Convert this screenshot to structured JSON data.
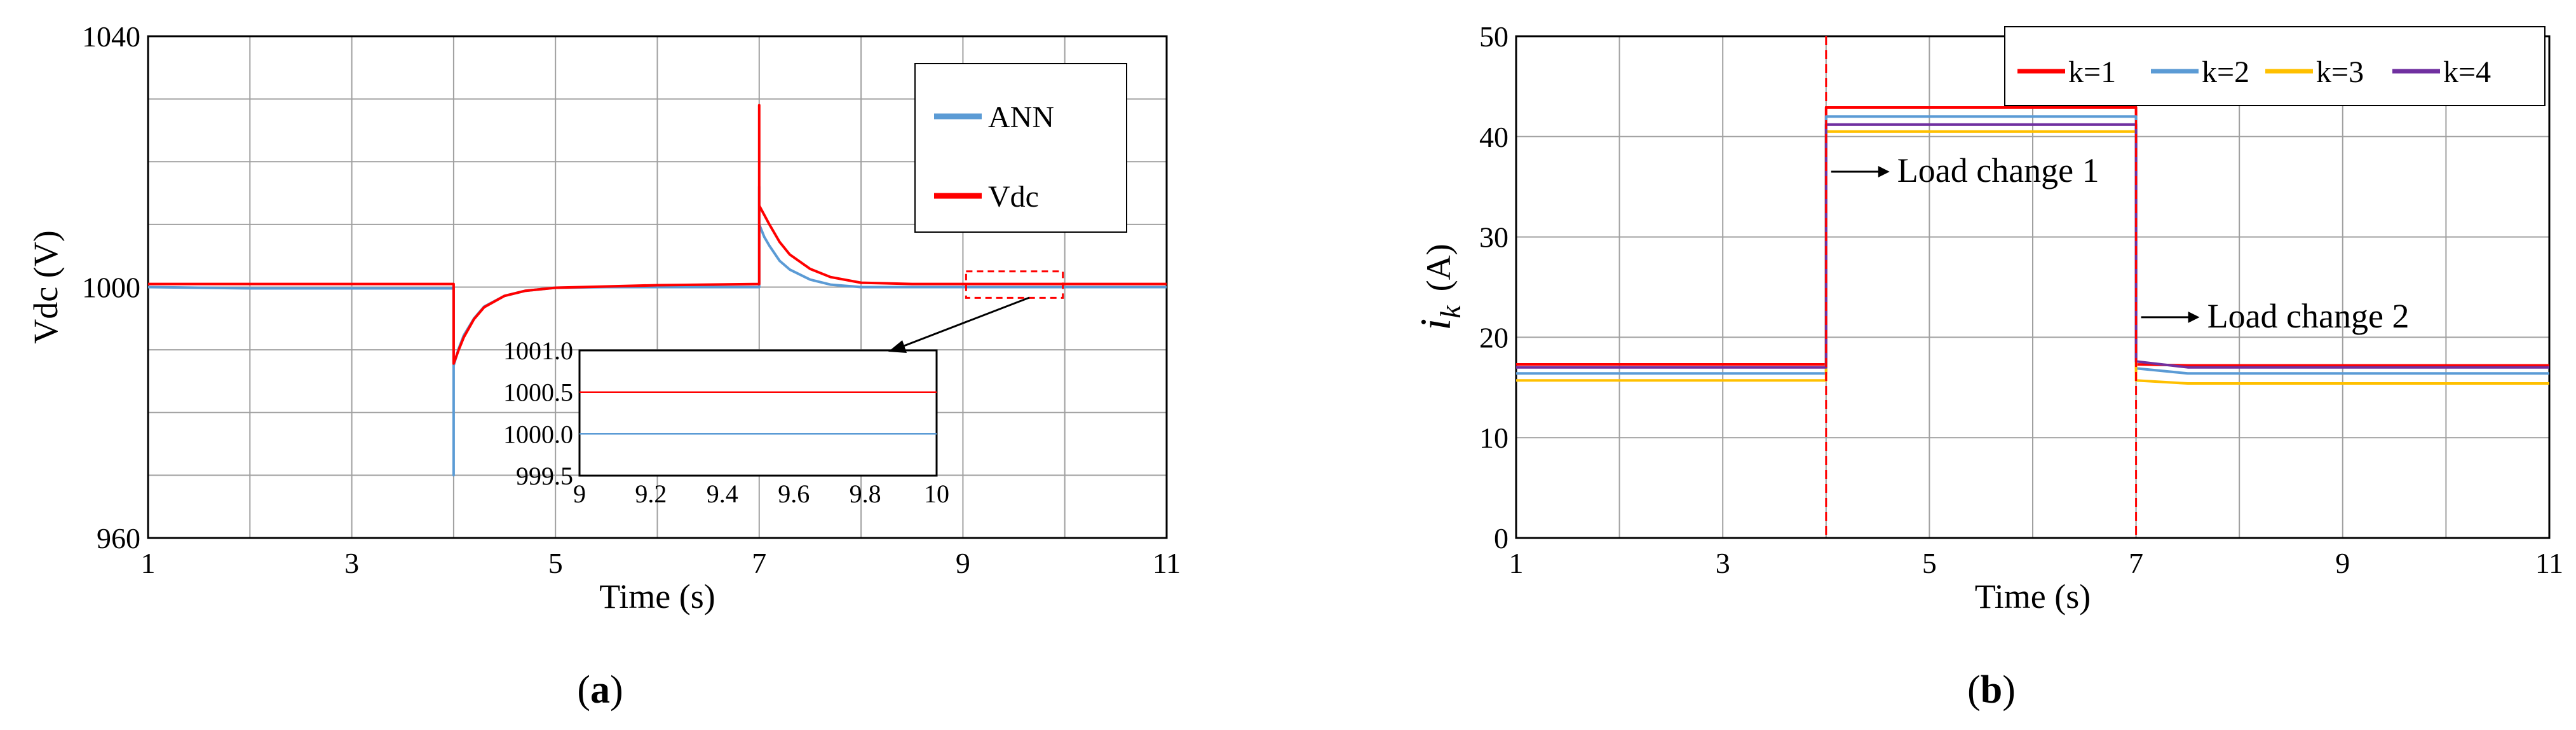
{
  "chart_data": [
    {
      "type": "line",
      "panel": "(a)",
      "panel_letter": "a",
      "xlabel": "Time (s)",
      "ylabel": "Vdc (V)",
      "xlim": [
        1,
        11
      ],
      "ylim": [
        960,
        1040
      ],
      "xticks": [
        "1",
        "3",
        "5",
        "7",
        "9",
        "11"
      ],
      "yticks": [
        "960",
        "1000",
        "1040"
      ],
      "grid": true,
      "legend": {
        "placement": "top-right",
        "entries": [
          "ANN",
          "Vdc"
        ]
      },
      "series": [
        {
          "name": "ANN",
          "color": "#5b9bd5",
          "x": [
            1,
            2,
            3,
            4,
            4.0,
            4.0,
            4.05,
            4.1,
            4.2,
            4.3,
            4.5,
            4.7,
            5.0,
            5.5,
            6,
            7,
            7.0,
            7.0,
            7.05,
            7.1,
            7.2,
            7.3,
            7.5,
            7.7,
            8.0,
            8.5,
            9,
            10,
            11
          ],
          "y": [
            1000,
            999.8,
            999.8,
            999.8,
            970,
            987.5,
            990.2,
            992.3,
            995.0,
            996.9,
            998.6,
            999.4,
            999.9,
            1000,
            1000,
            1000,
            1016,
            1010,
            1008,
            1006.6,
            1004.2,
            1002.8,
            1001.2,
            1000.4,
            1000,
            1000,
            1000,
            1000,
            1000
          ]
        },
        {
          "name": "Vdc",
          "color": "#ff0000",
          "x": [
            1,
            2,
            3,
            4,
            4.0,
            4.05,
            4.1,
            4.2,
            4.3,
            4.5,
            4.7,
            5.0,
            5.5,
            6,
            7,
            7.0,
            7.0,
            7.05,
            7.1,
            7.2,
            7.3,
            7.5,
            7.7,
            8.0,
            8.5,
            9,
            10,
            11
          ],
          "y": [
            1000.5,
            1000.5,
            1000.5,
            1000.5,
            987.8,
            990.0,
            992.0,
            994.9,
            996.8,
            998.6,
            999.4,
            999.9,
            1000.1,
            1000.3,
            1000.5,
            1029,
            1013,
            1011.5,
            1010,
            1007.2,
            1005.2,
            1002.9,
            1001.6,
            1000.7,
            1000.5,
            1000.5,
            1000.5,
            1000.5
          ]
        }
      ],
      "inset": {
        "xlim": [
          9,
          10
        ],
        "ylim": [
          999.5,
          1001.0
        ],
        "xticks": [
          "9",
          "9.2",
          "9.4",
          "9.6",
          "9.8",
          "10"
        ],
        "yticks": [
          "999.5",
          "1000.0",
          "1000.5",
          "1001.0"
        ],
        "zoom_region": {
          "x": [
            9,
            10
          ],
          "y": [
            999.3,
            1001.5
          ]
        },
        "series": [
          {
            "name": "Vdc",
            "color": "#ff0000",
            "x": [
              9,
              10
            ],
            "y": [
              1000.5,
              1000.5
            ]
          },
          {
            "name": "ANN",
            "color": "#5b9bd5",
            "x": [
              9,
              10
            ],
            "y": [
              1000.0,
              1000.0
            ]
          }
        ]
      }
    },
    {
      "type": "line",
      "panel": "(b)",
      "panel_letter": "b",
      "xlabel": "Time (s)",
      "ylabel_main": "i",
      "ylabel_sub": "k",
      "ylabel_unit": "(A)",
      "xlim": [
        1,
        11
      ],
      "ylim": [
        0,
        50
      ],
      "xticks": [
        "1",
        "3",
        "5",
        "7",
        "9",
        "11"
      ],
      "yticks": [
        "0",
        "10",
        "20",
        "30",
        "40",
        "50"
      ],
      "grid": true,
      "legend": {
        "placement": "top-right",
        "entries": [
          "k=1",
          "k=2",
          "k=3",
          "k=4"
        ]
      },
      "series": [
        {
          "name": "k=1",
          "color": "#ff0000",
          "x": [
            1,
            4,
            4,
            7,
            7,
            7.5,
            11
          ],
          "y": [
            17.3,
            17.3,
            42.9,
            42.9,
            17.3,
            17.2,
            17.2
          ]
        },
        {
          "name": "k=2",
          "color": "#5b9bd5",
          "x": [
            1,
            4,
            4,
            7,
            7,
            7.5,
            11
          ],
          "y": [
            16.4,
            16.4,
            42.0,
            42.0,
            16.9,
            16.4,
            16.4
          ]
        },
        {
          "name": "k=3",
          "color": "#ffc000",
          "x": [
            1,
            4,
            4,
            7,
            7,
            7.5,
            11
          ],
          "y": [
            15.7,
            15.7,
            40.5,
            40.5,
            15.7,
            15.4,
            15.4
          ]
        },
        {
          "name": "k=4",
          "color": "#7030a0",
          "x": [
            1,
            4,
            4,
            7,
            7,
            7.5,
            11
          ],
          "y": [
            17.0,
            17.0,
            41.2,
            41.2,
            17.6,
            17.0,
            17.0
          ]
        }
      ],
      "event_lines": {
        "x": [
          4,
          7
        ],
        "color": "#ff0000"
      },
      "annotations": [
        {
          "text": "Load change 1",
          "x": 4.0,
          "y": 36.5
        },
        {
          "text": "Load change 2",
          "x": 7.0,
          "y": 22.0
        }
      ]
    }
  ]
}
